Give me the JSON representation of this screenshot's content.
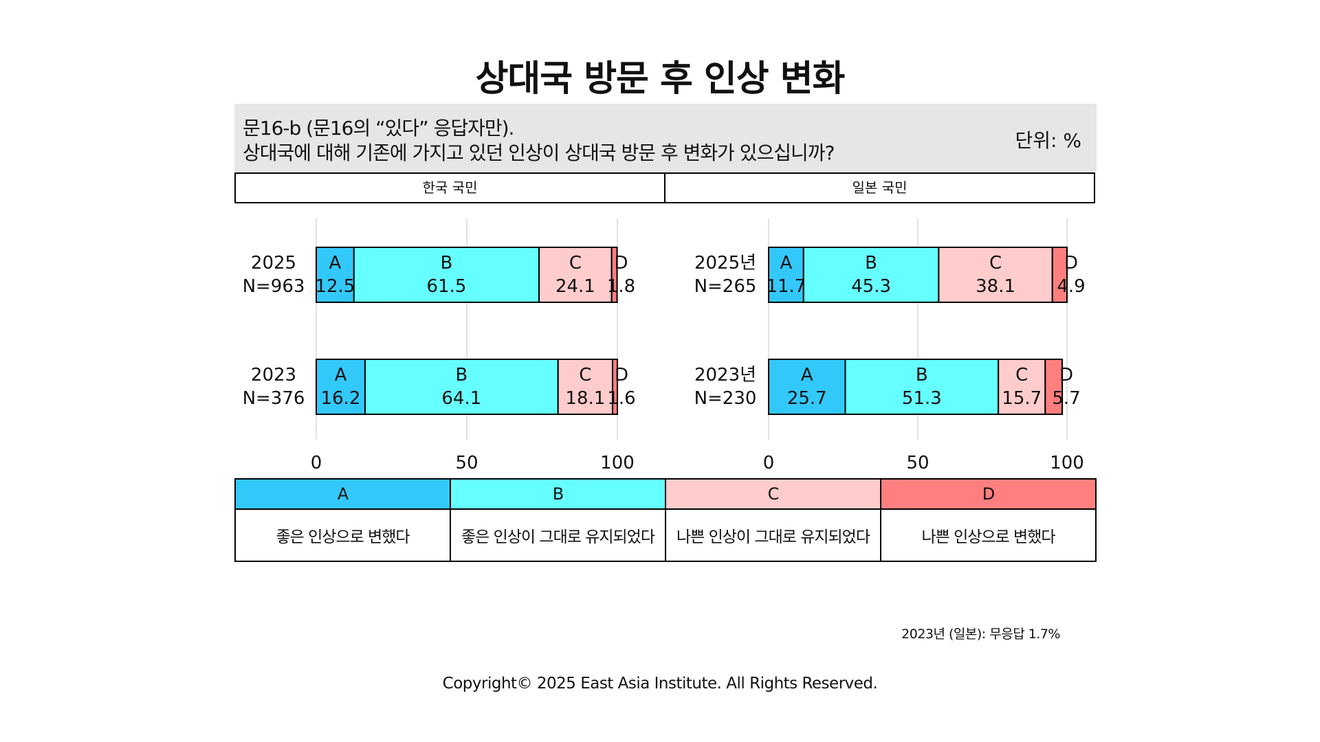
{
  "title": "상대국 방문 후 인상 변화",
  "question": {
    "line1": "문16-b (문16의 “있다” 응답자만).",
    "line2": "상대국에 대해 기존에 가지고 있던 인상이 상대국 방문 후 변화가 있으십니까?",
    "unit": "단위: %"
  },
  "groups": [
    "한국 국민",
    "일본 국민"
  ],
  "colors": {
    "A": "#33c8fa",
    "B": "#66ffff",
    "C": "#ffcccc",
    "D": "#ff7f7f"
  },
  "chart_data": [
    {
      "type": "bar",
      "orientation": "horizontal-stacked",
      "group": "한국 국민",
      "categories": [
        {
          "year": "2025",
          "n": "N=963"
        },
        {
          "year": "2023",
          "n": "N=376"
        }
      ],
      "series": [
        {
          "name": "A",
          "values": [
            12.5,
            16.2
          ]
        },
        {
          "name": "B",
          "values": [
            61.5,
            64.1
          ]
        },
        {
          "name": "C",
          "values": [
            24.1,
            18.1
          ]
        },
        {
          "name": "D",
          "values": [
            1.8,
            1.6
          ]
        }
      ],
      "xlim": [
        0,
        100
      ],
      "xticks": [
        "0",
        "50",
        "100"
      ],
      "grid": true
    },
    {
      "type": "bar",
      "orientation": "horizontal-stacked",
      "group": "일본 국민",
      "categories": [
        {
          "year": "2025년",
          "n": "N=265"
        },
        {
          "year": "2023년",
          "n": "N=230"
        }
      ],
      "series": [
        {
          "name": "A",
          "values": [
            11.7,
            25.7
          ]
        },
        {
          "name": "B",
          "values": [
            45.3,
            51.3
          ]
        },
        {
          "name": "C",
          "values": [
            38.1,
            15.7
          ]
        },
        {
          "name": "D",
          "values": [
            4.9,
            5.7
          ]
        }
      ],
      "xlim": [
        0,
        100
      ],
      "xticks": [
        "0",
        "50",
        "100"
      ],
      "grid": true
    }
  ],
  "legend": [
    {
      "key": "A",
      "label": "좋은 인상으로 변했다"
    },
    {
      "key": "B",
      "label": "좋은 인상이 그대로 유지되었다"
    },
    {
      "key": "C",
      "label": "나쁜 인상이 그대로 유지되었다"
    },
    {
      "key": "D",
      "label": "나쁜 인상으로 변했다"
    }
  ],
  "note": "2023년 (일본): 무응답 1.7%",
  "copyright": "Copyright© 2025 East Asia Institute. All Rights Reserved."
}
